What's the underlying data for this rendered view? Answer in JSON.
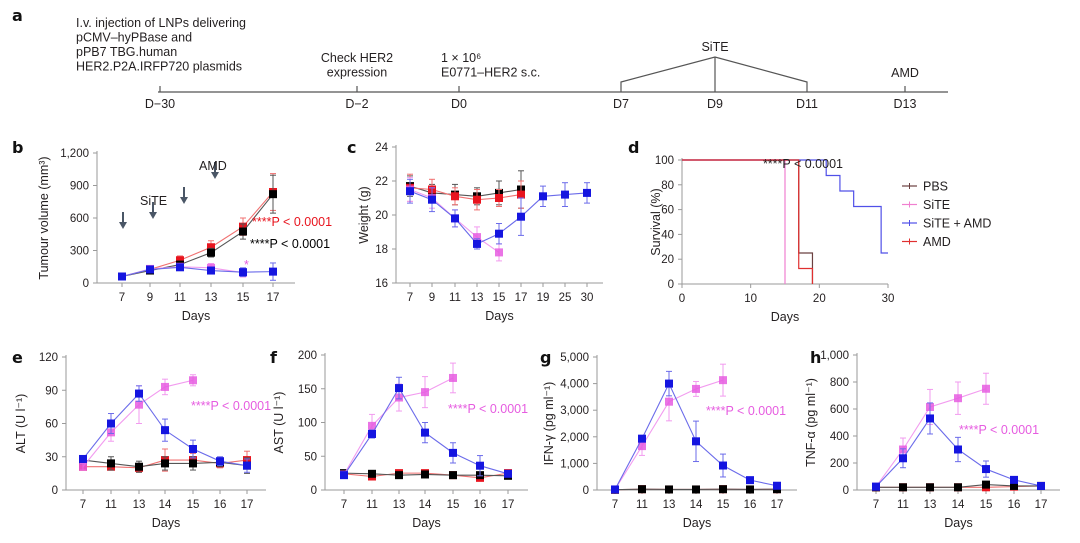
{
  "panel_labels": [
    "a",
    "b",
    "c",
    "d",
    "e",
    "f",
    "g",
    "h"
  ],
  "timeline": {
    "events": [
      {
        "day": "D−30",
        "lines": [
          "I.v. injection of LNPs delivering",
          "pCMV–hyPBase and",
          "pPB7 TBG.human",
          "HER2.P2A.IRFP720 plasmids"
        ]
      },
      {
        "day": "D−2",
        "lines": [
          "Check HER2",
          "expression"
        ]
      },
      {
        "day": "D0",
        "lines": [
          "1 × 10⁶",
          "E0771–HER2 s.c."
        ]
      },
      {
        "day": "D7",
        "lines": []
      },
      {
        "day": "D9",
        "lines": [
          "SiTE"
        ]
      },
      {
        "day": "D11",
        "lines": []
      },
      {
        "day": "D13",
        "lines": [
          "AMD"
        ]
      }
    ]
  },
  "colors": {
    "PBS": "#000000",
    "SiTE": "#e65ce0",
    "SiTE_AMD": "#1515e0",
    "AMD": "#e8141e",
    "arrow": "#4a5666",
    "axis": "#9a9a9a"
  },
  "chart_data": [
    {
      "id": "b",
      "type": "line",
      "xlabel": "Days",
      "ylabel": "Tumour volume (mm³)",
      "x": [
        "7",
        "9",
        "11",
        "13",
        "15",
        "17"
      ],
      "yticks": [
        "0",
        "300",
        "600",
        "900",
        "1,200"
      ],
      "ylim": [
        0,
        1200
      ],
      "annotations": [
        {
          "text": "SiTE"
        },
        {
          "text": "AMD"
        },
        {
          "text": "****P < 0.0001",
          "color": "AMD"
        },
        {
          "text": "****P < 0.0001",
          "color": "PBS"
        },
        {
          "text": "*",
          "color": "SiTE"
        }
      ],
      "arrows_at": [
        7,
        9,
        11,
        13
      ],
      "series": [
        {
          "name": "AMD",
          "values": [
            60,
            125,
            210,
            330,
            520,
            840
          ],
          "err": [
            10,
            20,
            40,
            60,
            80,
            170
          ]
        },
        {
          "name": "PBS",
          "values": [
            60,
            115,
            170,
            280,
            475,
            820
          ],
          "err": [
            10,
            15,
            30,
            40,
            70,
            175
          ]
        },
        {
          "name": "SiTE",
          "values": [
            60,
            130,
            150,
            140,
            95,
            null
          ],
          "err": [
            10,
            20,
            30,
            40,
            40,
            null
          ]
        },
        {
          "name": "SiTE_AMD",
          "values": [
            60,
            125,
            145,
            115,
            100,
            105
          ],
          "err": [
            10,
            20,
            25,
            30,
            40,
            80
          ]
        }
      ]
    },
    {
      "id": "c",
      "type": "line",
      "xlabel": "Days",
      "ylabel": "Weight (g)",
      "x": [
        "7",
        "9",
        "11",
        "13",
        "15",
        "17",
        "19",
        "25",
        "30"
      ],
      "yticks": [
        "16",
        "18",
        "20",
        "22",
        "24"
      ],
      "ylim": [
        16,
        24
      ],
      "series": [
        {
          "name": "PBS",
          "values": [
            21.7,
            21.3,
            21.2,
            21.1,
            21.3,
            21.5,
            null,
            null,
            null
          ],
          "err": [
            0.6,
            0.5,
            0.6,
            0.5,
            0.7,
            1.1,
            null,
            null,
            null
          ]
        },
        {
          "name": "AMD",
          "values": [
            21.6,
            21.5,
            21.1,
            20.9,
            21.0,
            21.2,
            null,
            null,
            null
          ],
          "err": [
            0.8,
            0.6,
            0.5,
            0.6,
            0.5,
            0.8,
            null,
            null,
            null
          ]
        },
        {
          "name": "SiTE",
          "values": [
            21.5,
            21.0,
            19.8,
            18.7,
            17.8,
            null,
            null,
            null,
            null
          ],
          "err": [
            0.7,
            0.6,
            0.5,
            0.6,
            0.5,
            null,
            null,
            null,
            null
          ]
        },
        {
          "name": "SiTE_AMD",
          "values": [
            21.4,
            20.9,
            19.8,
            18.3,
            18.9,
            19.9,
            21.1,
            21.2,
            21.3
          ],
          "err": [
            0.7,
            0.7,
            0.5,
            0.3,
            0.6,
            1.1,
            0.6,
            0.7,
            0.6
          ]
        }
      ]
    },
    {
      "id": "d",
      "type": "line",
      "xlabel": "Days",
      "ylabel": "Survival (%)",
      "xticks": [
        "0",
        "10",
        "20",
        "30"
      ],
      "xlim": [
        0,
        30
      ],
      "yticks": [
        "0",
        "20",
        "40",
        "60",
        "80",
        "100"
      ],
      "ylim": [
        0,
        100
      ],
      "annotation": "****P < 0.0001",
      "legend": {
        "position": "right",
        "entries": [
          "PBS",
          "SiTE",
          "SiTE + AMD",
          "AMD"
        ]
      },
      "series": [
        {
          "name": "PBS",
          "steps": [
            [
              0,
              100
            ],
            [
              17,
              100
            ],
            [
              17,
              25
            ],
            [
              19,
              25
            ],
            [
              19,
              0
            ]
          ]
        },
        {
          "name": "SiTE",
          "steps": [
            [
              0,
              100
            ],
            [
              15,
              100
            ],
            [
              15,
              0
            ]
          ]
        },
        {
          "name": "SiTE_AMD",
          "steps": [
            [
              0,
              100
            ],
            [
              21,
              100
            ],
            [
              21,
              87.5
            ],
            [
              23,
              87.5
            ],
            [
              23,
              75
            ],
            [
              25,
              75
            ],
            [
              25,
              62.5
            ],
            [
              29,
              62.5
            ],
            [
              29,
              25
            ],
            [
              30,
              25
            ]
          ]
        },
        {
          "name": "AMD",
          "steps": [
            [
              0,
              100
            ],
            [
              17,
              100
            ],
            [
              17,
              12.5
            ],
            [
              19,
              12.5
            ],
            [
              19,
              0
            ]
          ]
        }
      ]
    },
    {
      "id": "e",
      "type": "line",
      "xlabel": "Days",
      "ylabel": "ALT (U l⁻¹)",
      "x": [
        "7",
        "11",
        "13",
        "14",
        "15",
        "16",
        "17"
      ],
      "yticks": [
        "0",
        "30",
        "60",
        "90",
        "120"
      ],
      "ylim": [
        0,
        120
      ],
      "annotation": {
        "text": "****P < 0.0001",
        "color": "SiTE"
      },
      "series": [
        {
          "name": "SiTE",
          "values": [
            21,
            52,
            77,
            93,
            99,
            null,
            null
          ],
          "err": [
            3,
            8,
            17,
            7,
            5,
            null,
            null
          ]
        },
        {
          "name": "SiTE_AMD",
          "values": [
            28,
            60,
            87,
            54,
            37,
            26,
            22
          ],
          "err": [
            3,
            9,
            7,
            10,
            8,
            4,
            6
          ]
        },
        {
          "name": "AMD",
          "values": [
            21,
            21,
            20,
            27,
            27,
            24,
            27
          ],
          "err": [
            3,
            3,
            4,
            10,
            6,
            4,
            8
          ]
        },
        {
          "name": "PBS",
          "values": [
            27,
            24,
            21,
            24,
            24,
            25,
            22
          ],
          "err": [
            4,
            6,
            5,
            6,
            6,
            4,
            7
          ]
        }
      ]
    },
    {
      "id": "f",
      "type": "line",
      "xlabel": "Days",
      "ylabel": "AST (U l⁻¹)",
      "x": [
        "7",
        "11",
        "13",
        "14",
        "15",
        "16",
        "17"
      ],
      "yticks": [
        "0",
        "50",
        "100",
        "150",
        "200"
      ],
      "ylim": [
        0,
        200
      ],
      "annotation": {
        "text": "****P < 0.0001",
        "color": "SiTE"
      },
      "series": [
        {
          "name": "SiTE",
          "values": [
            23,
            95,
            137,
            145,
            166,
            null,
            null
          ],
          "err": [
            4,
            17,
            20,
            23,
            22,
            null,
            null
          ]
        },
        {
          "name": "SiTE_AMD",
          "values": [
            22,
            83,
            151,
            85,
            55,
            36,
            24
          ],
          "err": [
            3,
            6,
            16,
            15,
            15,
            15,
            4
          ]
        },
        {
          "name": "AMD",
          "values": [
            24,
            20,
            25,
            25,
            22,
            18,
            25
          ],
          "err": [
            3,
            3,
            3,
            3,
            3,
            3,
            3
          ]
        },
        {
          "name": "PBS",
          "values": [
            25,
            24,
            22,
            23,
            22,
            22,
            21
          ],
          "err": [
            3,
            3,
            3,
            3,
            3,
            3,
            3
          ]
        }
      ]
    },
    {
      "id": "g",
      "type": "line",
      "xlabel": "Days",
      "ylabel": "IFN-γ (pg ml⁻¹)",
      "x": [
        "7",
        "11",
        "13",
        "14",
        "15",
        "16",
        "17"
      ],
      "yticks": [
        "0",
        "1,000",
        "2,000",
        "3,000",
        "4,000",
        "5,000"
      ],
      "ylim": [
        0,
        5000
      ],
      "annotation": {
        "text": "****P < 0.0001",
        "color": "SiTE"
      },
      "series": [
        {
          "name": "SiTE",
          "values": [
            20,
            1650,
            3320,
            3800,
            4130,
            null,
            null
          ],
          "err": [
            20,
            350,
            720,
            280,
            600,
            null,
            null
          ]
        },
        {
          "name": "SiTE_AMD",
          "values": [
            20,
            1930,
            4000,
            1830,
            920,
            370,
            160
          ],
          "err": [
            20,
            120,
            460,
            760,
            430,
            80,
            60
          ]
        },
        {
          "name": "AMD",
          "values": [
            10,
            30,
            20,
            20,
            30,
            20,
            30
          ],
          "err": [
            5,
            10,
            10,
            10,
            10,
            10,
            10
          ]
        },
        {
          "name": "PBS",
          "values": [
            10,
            30,
            20,
            20,
            30,
            20,
            30
          ],
          "err": [
            5,
            10,
            10,
            10,
            10,
            10,
            10
          ]
        }
      ]
    },
    {
      "id": "h",
      "type": "line",
      "xlabel": "Days",
      "ylabel": "TNF-α (pg ml⁻¹)",
      "x": [
        "7",
        "11",
        "13",
        "14",
        "15",
        "16",
        "17"
      ],
      "yticks": [
        "0",
        "200",
        "400",
        "600",
        "800",
        "1,000"
      ],
      "ylim": [
        0,
        1000
      ],
      "annotation": {
        "text": "****P < 0.0001",
        "color": "SiTE"
      },
      "series": [
        {
          "name": "SiTE",
          "values": [
            25,
            300,
            615,
            680,
            750,
            null,
            null
          ],
          "err": [
            5,
            85,
            130,
            120,
            115,
            null,
            null
          ]
        },
        {
          "name": "SiTE_AMD",
          "values": [
            25,
            235,
            530,
            300,
            155,
            75,
            30
          ],
          "err": [
            5,
            70,
            115,
            90,
            60,
            20,
            5
          ]
        },
        {
          "name": "AMD",
          "values": [
            20,
            20,
            20,
            20,
            20,
            25,
            30
          ],
          "err": [
            3,
            3,
            3,
            3,
            3,
            3,
            3
          ]
        },
        {
          "name": "PBS",
          "values": [
            20,
            20,
            20,
            20,
            40,
            30,
            30
          ],
          "err": [
            3,
            3,
            3,
            3,
            5,
            5,
            3
          ]
        }
      ]
    }
  ]
}
